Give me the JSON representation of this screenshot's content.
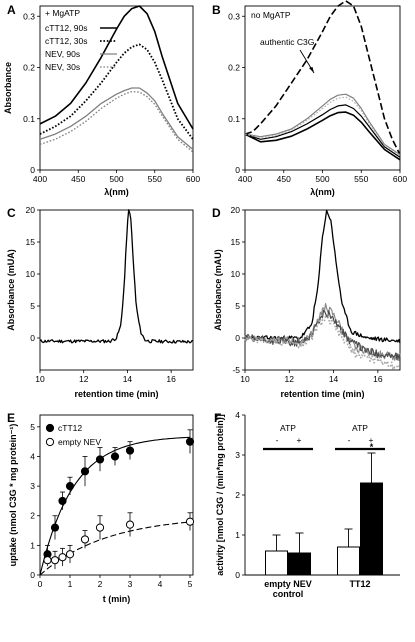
{
  "figure": {
    "panel_labels": [
      "A",
      "B",
      "C",
      "D",
      "E",
      "F"
    ]
  },
  "chart_data": [
    {
      "id": "A",
      "type": "line",
      "xlabel": "λ(nm)",
      "ylabel": "Absorbance",
      "xlim": [
        400,
        600
      ],
      "ylim": [
        0,
        0.32
      ],
      "xticks": [
        "400",
        "450",
        "500",
        "550",
        "600"
      ],
      "yticks": [
        "0",
        "0.1",
        "0.2",
        "0.3"
      ],
      "annotation": "+ MgATP",
      "series": [
        {
          "name": "cTT12, 90s",
          "color": "#000000",
          "dash": "solid",
          "width": 1.6,
          "x": [
            400,
            420,
            440,
            460,
            480,
            500,
            510,
            520,
            530,
            540,
            550,
            560,
            580,
            600
          ],
          "y": [
            0.09,
            0.105,
            0.13,
            0.17,
            0.22,
            0.275,
            0.3,
            0.315,
            0.32,
            0.305,
            0.27,
            0.22,
            0.13,
            0.08
          ]
        },
        {
          "name": "cTT12, 30s",
          "color": "#000000",
          "dash": "dotted",
          "width": 1.8,
          "x": [
            400,
            420,
            440,
            460,
            480,
            500,
            510,
            520,
            530,
            540,
            550,
            560,
            580,
            600
          ],
          "y": [
            0.07,
            0.085,
            0.105,
            0.135,
            0.17,
            0.21,
            0.228,
            0.24,
            0.245,
            0.235,
            0.21,
            0.175,
            0.1,
            0.06
          ]
        },
        {
          "name": "NEV, 90s",
          "color": "#808080",
          "dash": "solid",
          "width": 1.3,
          "x": [
            400,
            420,
            440,
            460,
            480,
            500,
            510,
            520,
            530,
            540,
            550,
            560,
            580,
            600
          ],
          "y": [
            0.06,
            0.07,
            0.085,
            0.105,
            0.13,
            0.148,
            0.155,
            0.16,
            0.16,
            0.15,
            0.135,
            0.11,
            0.065,
            0.04
          ]
        },
        {
          "name": "NEV, 30s",
          "color": "#808080",
          "dash": "dotted",
          "width": 1.3,
          "x": [
            400,
            420,
            440,
            460,
            480,
            500,
            510,
            520,
            530,
            540,
            550,
            560,
            580,
            600
          ],
          "y": [
            0.05,
            0.06,
            0.075,
            0.095,
            0.12,
            0.14,
            0.148,
            0.153,
            0.152,
            0.143,
            0.128,
            0.105,
            0.06,
            0.035
          ]
        }
      ]
    },
    {
      "id": "B",
      "type": "line",
      "xlabel": "λ(nm)",
      "ylabel": "",
      "xlim": [
        400,
        600
      ],
      "ylim": [
        0,
        0.32
      ],
      "xticks": [
        "400",
        "450",
        "500",
        "550",
        "600"
      ],
      "yticks": [
        "0",
        "0.1",
        "0.2",
        "0.3"
      ],
      "annotations": [
        "no MgATP",
        "authentic C3G"
      ],
      "series": [
        {
          "name": "authentic C3G",
          "color": "#000000",
          "dash": "dashed",
          "width": 1.6,
          "x": [
            400,
            410,
            420,
            440,
            460,
            480,
            500,
            510,
            520,
            530,
            540,
            550,
            560,
            570,
            580,
            590,
            600
          ],
          "y": [
            0.07,
            0.075,
            0.09,
            0.125,
            0.17,
            0.215,
            0.27,
            0.3,
            0.32,
            0.33,
            0.32,
            0.28,
            0.22,
            0.16,
            0.1,
            0.06,
            0.03
          ]
        },
        {
          "name": "",
          "color": "#808080",
          "dash": "solid",
          "width": 1.2,
          "x": [
            400,
            420,
            440,
            460,
            480,
            500,
            510,
            520,
            530,
            540,
            550,
            560,
            580,
            600
          ],
          "y": [
            0.07,
            0.065,
            0.07,
            0.08,
            0.1,
            0.125,
            0.138,
            0.146,
            0.148,
            0.14,
            0.12,
            0.095,
            0.05,
            0.03
          ]
        },
        {
          "name": "",
          "color": "#000000",
          "dash": "solid",
          "width": 1.2,
          "x": [
            400,
            420,
            440,
            460,
            480,
            500,
            510,
            520,
            530,
            540,
            550,
            560,
            580,
            600
          ],
          "y": [
            0.07,
            0.06,
            0.065,
            0.075,
            0.09,
            0.108,
            0.118,
            0.125,
            0.127,
            0.12,
            0.105,
            0.085,
            0.045,
            0.025
          ]
        },
        {
          "name": "",
          "color": "#000000",
          "dash": "solid",
          "width": 1.6,
          "x": [
            400,
            420,
            440,
            460,
            480,
            500,
            510,
            520,
            530,
            540,
            550,
            560,
            580,
            600
          ],
          "y": [
            0.07,
            0.055,
            0.058,
            0.066,
            0.08,
            0.097,
            0.106,
            0.112,
            0.113,
            0.107,
            0.093,
            0.075,
            0.04,
            0.02
          ]
        },
        {
          "name": "",
          "color": "#b0b0b0",
          "dash": "dotted",
          "width": 1.2,
          "x": [
            400,
            420,
            440,
            460,
            480,
            500,
            510,
            520,
            530,
            540,
            550,
            560,
            580,
            600
          ],
          "y": [
            0.07,
            0.063,
            0.068,
            0.078,
            0.097,
            0.12,
            0.132,
            0.14,
            0.142,
            0.134,
            0.116,
            0.091,
            0.048,
            0.028
          ]
        }
      ]
    },
    {
      "id": "C",
      "type": "line",
      "xlabel": "retention time (min)",
      "ylabel": "Absorbance (mUA)",
      "xlim": [
        10,
        17
      ],
      "ylim": [
        -5,
        20
      ],
      "xticks": [
        "10",
        "12",
        "14",
        "16"
      ],
      "yticks": [
        "0",
        "5",
        "10",
        "15",
        "20"
      ],
      "series": [
        {
          "name": "",
          "color": "#000000",
          "dash": "solid",
          "width": 1.3,
          "noise": 0.25,
          "x": [
            10,
            13.2,
            13.5,
            13.7,
            13.85,
            13.95,
            14.05,
            14.15,
            14.25,
            14.4,
            14.6,
            14.8,
            15,
            17
          ],
          "y": [
            -0.5,
            -0.5,
            0,
            2,
            8,
            15,
            20,
            19,
            13,
            5,
            1,
            -0.3,
            -0.5,
            -0.6
          ]
        }
      ]
    },
    {
      "id": "D",
      "type": "line",
      "xlabel": "retention time (min)",
      "ylabel": "Absorbance (mAU)",
      "xlim": [
        10,
        17
      ],
      "ylim": [
        -5,
        20
      ],
      "xticks": [
        "10",
        "12",
        "14",
        "16"
      ],
      "yticks": [
        "-5",
        "0",
        "5",
        "10",
        "15",
        "20"
      ],
      "series": [
        {
          "name": "",
          "color": "#000000",
          "dash": "solid",
          "width": 1.3,
          "noise": 0.35,
          "x": [
            10,
            12.5,
            13,
            13.3,
            13.5,
            13.7,
            13.9,
            14.1,
            14.4,
            14.8,
            15.5,
            17
          ],
          "y": [
            0,
            0,
            2,
            8,
            16,
            20,
            18,
            12,
            5,
            1,
            0,
            -0.5
          ]
        },
        {
          "name": "",
          "color": "#8a8a8a",
          "dash": "solid",
          "width": 1.2,
          "noise": 0.6,
          "x": [
            10,
            12.5,
            13,
            13.3,
            13.6,
            13.9,
            14.2,
            14.6,
            15,
            15.5,
            16,
            17
          ],
          "y": [
            0,
            -0.5,
            0.5,
            3,
            5,
            4,
            2.5,
            0,
            -1.5,
            -2,
            -2.5,
            -3
          ]
        },
        {
          "name": "",
          "color": "#4a4a4a",
          "dash": "solid",
          "width": 1.2,
          "noise": 0.6,
          "x": [
            10,
            12.5,
            13,
            13.3,
            13.6,
            13.9,
            14.2,
            14.6,
            15,
            15.5,
            16,
            17
          ],
          "y": [
            0,
            -0.8,
            0.5,
            2.5,
            4,
            3.5,
            2,
            0,
            -1,
            -2,
            -2.5,
            -3
          ]
        },
        {
          "name": "",
          "color": "#a8a8a8",
          "dash": "dotted",
          "width": 1.6,
          "noise": 0.6,
          "x": [
            10,
            12.5,
            13,
            13.3,
            13.6,
            13.9,
            14.2,
            14.6,
            15,
            15.5,
            16,
            17
          ],
          "y": [
            0,
            -1,
            0,
            2,
            3,
            2.5,
            1,
            -1,
            -2.5,
            -3,
            -3.5,
            -4.5
          ]
        }
      ]
    },
    {
      "id": "E",
      "type": "scatter",
      "xlabel": "t (min)",
      "ylabel": "uptake (nmol C3G * mg protein⁻¹)",
      "xlim": [
        0,
        5.1
      ],
      "ylim": [
        0,
        5.4
      ],
      "xticks": [
        "0",
        "1",
        "2",
        "3",
        "4",
        "5"
      ],
      "yticks": [
        "0",
        "1",
        "2",
        "3",
        "4",
        "5"
      ],
      "series": [
        {
          "name": "cTT12",
          "marker": "filled-circle",
          "fit": "solid",
          "x": [
            0.25,
            0.5,
            0.75,
            1,
            1.5,
            2,
            2.5,
            3,
            5
          ],
          "y": [
            0.7,
            1.6,
            2.5,
            3.0,
            3.5,
            3.9,
            4.0,
            4.2,
            4.5
          ],
          "err": [
            0.3,
            0.4,
            0.3,
            0.3,
            0.5,
            0.4,
            0.3,
            0.3,
            0.4
          ]
        },
        {
          "name": "empty NEV",
          "marker": "open-circle",
          "fit": "dashed",
          "x": [
            0.25,
            0.5,
            0.75,
            1,
            1.5,
            2,
            3,
            5
          ],
          "y": [
            0.5,
            0.5,
            0.6,
            0.7,
            1.2,
            1.6,
            1.7,
            1.8
          ],
          "err": [
            0.2,
            0.3,
            0.3,
            0.3,
            0.3,
            0.4,
            0.4,
            0.3
          ]
        }
      ],
      "fits": [
        {
          "series": "cTT12",
          "ymax": 4.7,
          "k": 0.9
        },
        {
          "series": "empty NEV",
          "ymax": 2.0,
          "k": 0.45
        }
      ]
    },
    {
      "id": "F",
      "type": "bar",
      "ylabel": "activity [nmol C3G / (min*mg protein)]",
      "ylim": [
        0,
        4
      ],
      "yticks": [
        "0",
        "1",
        "2",
        "3",
        "4"
      ],
      "groups": [
        "empty NEV\ncontrol",
        "TT12"
      ],
      "atp_label": "ATP",
      "signs": [
        "-",
        "+"
      ],
      "bars": [
        {
          "group": 0,
          "atp": "-",
          "value": 0.6,
          "err": 0.4,
          "fill": "#ffffff"
        },
        {
          "group": 0,
          "atp": "+",
          "value": 0.55,
          "err": 0.5,
          "fill": "#000000"
        },
        {
          "group": 1,
          "atp": "-",
          "value": 0.7,
          "err": 0.45,
          "fill": "#ffffff"
        },
        {
          "group": 1,
          "atp": "+",
          "value": 2.3,
          "err": 0.75,
          "fill": "#000000"
        }
      ],
      "significance": "*"
    }
  ]
}
